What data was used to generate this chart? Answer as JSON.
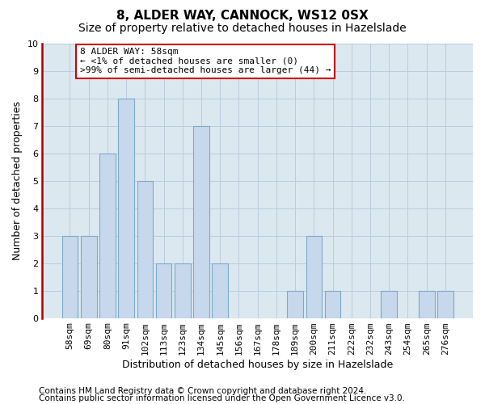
{
  "title": "8, ALDER WAY, CANNOCK, WS12 0SX",
  "subtitle": "Size of property relative to detached houses in Hazelslade",
  "xlabel": "Distribution of detached houses by size in Hazelslade",
  "ylabel": "Number of detached properties",
  "categories": [
    "58sqm",
    "69sqm",
    "80sqm",
    "91sqm",
    "102sqm",
    "113sqm",
    "123sqm",
    "134sqm",
    "145sqm",
    "156sqm",
    "167sqm",
    "178sqm",
    "189sqm",
    "200sqm",
    "211sqm",
    "222sqm",
    "232sqm",
    "243sqm",
    "254sqm",
    "265sqm",
    "276sqm"
  ],
  "values": [
    3,
    3,
    6,
    8,
    5,
    2,
    2,
    7,
    2,
    0,
    0,
    0,
    1,
    3,
    1,
    0,
    0,
    1,
    0,
    1,
    1
  ],
  "bar_color": "#c8d8ec",
  "bar_edge_color": "#7aaac8",
  "ylim": [
    0,
    10
  ],
  "yticks": [
    0,
    1,
    2,
    3,
    4,
    5,
    6,
    7,
    8,
    9,
    10
  ],
  "annotation_box_text": "8 ALDER WAY: 58sqm\n← <1% of detached houses are smaller (0)\n>99% of semi-detached houses are larger (44) →",
  "annotation_box_color": "#ffffff",
  "annotation_box_edge_color": "#cc0000",
  "grid_color": "#bbccdd",
  "axes_background": "#dce8f0",
  "left_spine_color": "#aa0000",
  "footnote1": "Contains HM Land Registry data © Crown copyright and database right 2024.",
  "footnote2": "Contains public sector information licensed under the Open Government Licence v3.0.",
  "title_fontsize": 11,
  "subtitle_fontsize": 10,
  "xlabel_fontsize": 9,
  "ylabel_fontsize": 9,
  "tick_fontsize": 8,
  "annotation_fontsize": 8,
  "footnote_fontsize": 7.5
}
